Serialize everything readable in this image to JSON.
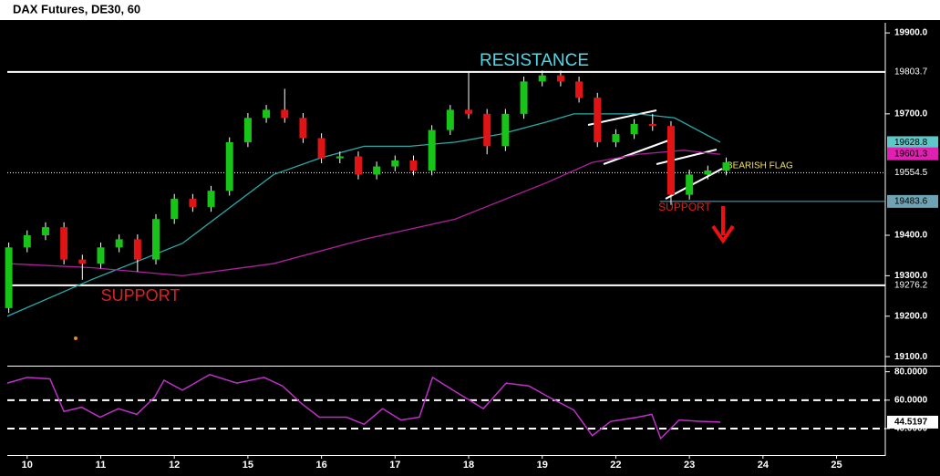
{
  "chart_data": {
    "type": "candlestick",
    "title": "DAX Futures, DE30, 60",
    "xlim": [
      -0.27,
      11.65
    ],
    "xticks": [
      {
        "value": 0,
        "label": "10"
      },
      {
        "value": 1,
        "label": "11"
      },
      {
        "value": 2,
        "label": "12"
      },
      {
        "value": 3,
        "label": "15"
      },
      {
        "value": 4,
        "label": "16"
      },
      {
        "value": 5,
        "label": "17"
      },
      {
        "value": 6,
        "label": "18"
      },
      {
        "value": 7,
        "label": "19"
      },
      {
        "value": 8,
        "label": "22"
      },
      {
        "value": 9,
        "label": "23"
      },
      {
        "value": 10,
        "label": "24"
      },
      {
        "value": 11,
        "label": "25"
      }
    ],
    "ylim": [
      19080,
      19925
    ],
    "yticks": [
      {
        "value": 19900,
        "label": "19900.0"
      },
      {
        "value": 19700,
        "label": "19700.0"
      },
      {
        "value": 19400,
        "label": "19400.0"
      },
      {
        "value": 19300,
        "label": "19300.0"
      },
      {
        "value": 19200,
        "label": "19200.0"
      },
      {
        "value": 19100,
        "label": "19100.0"
      }
    ],
    "up_color": "#19c419",
    "down_color": "#e01414",
    "candles": {
      "x": [
        -0.25,
        0,
        0.25,
        0.5,
        0.75,
        1,
        1.25,
        1.5,
        1.75,
        2,
        2.25,
        2.5,
        2.75,
        3,
        3.25,
        3.5,
        3.75,
        4,
        4.25,
        4.5,
        4.75,
        5,
        5.25,
        5.5,
        5.75,
        6,
        6.25,
        6.5,
        6.75,
        7,
        7.25,
        7.5,
        7.75,
        8,
        8.25,
        8.5,
        8.75,
        9,
        9.25,
        9.5
      ],
      "open": [
        19220,
        19370,
        19400,
        19420,
        19340,
        19330,
        19370,
        19390,
        19340,
        19440,
        19490,
        19470,
        19510,
        19630,
        19690,
        19710,
        19690,
        19640,
        19590,
        19595,
        19550,
        19570,
        19585,
        19560,
        19660,
        19710,
        19700,
        19620,
        19700,
        19780,
        19795,
        19780,
        19740,
        19630,
        19650,
        19675,
        19670,
        19500,
        19550,
        19560
      ],
      "high": [
        19382,
        19412,
        19432,
        19432,
        19352,
        19382,
        19402,
        19402,
        19452,
        19502,
        19502,
        19522,
        19642,
        19702,
        19722,
        19762,
        19702,
        19652,
        19607,
        19607,
        19582,
        19597,
        19597,
        19672,
        19722,
        19803,
        19712,
        19712,
        19792,
        19807,
        19807,
        19792,
        19752,
        19662,
        19687,
        19700,
        19682,
        19562,
        19572,
        19592
      ],
      "low": [
        19208,
        19358,
        19388,
        19328,
        19290,
        19318,
        19358,
        19310,
        19328,
        19428,
        19458,
        19458,
        19498,
        19618,
        19678,
        19678,
        19628,
        19578,
        19578,
        19538,
        19538,
        19558,
        19548,
        19548,
        19648,
        19688,
        19600,
        19608,
        19688,
        19768,
        19768,
        19728,
        19618,
        19618,
        19638,
        19658,
        19475,
        19488,
        19538,
        19548
      ],
      "close": [
        19370,
        19400,
        19420,
        19340,
        19330,
        19370,
        19390,
        19340,
        19440,
        19490,
        19470,
        19510,
        19630,
        19690,
        19710,
        19690,
        19640,
        19590,
        19595,
        19550,
        19570,
        19585,
        19560,
        19660,
        19710,
        19700,
        19620,
        19700,
        19780,
        19795,
        19780,
        19740,
        19630,
        19650,
        19675,
        19670,
        19500,
        19550,
        19560,
        19580
      ]
    },
    "moving_averages": [
      {
        "color": "#2aa9a9",
        "x": [
          -0.27,
          0.87,
          2.11,
          3.35,
          3.97,
          4.58,
          5.2,
          5.82,
          6.44,
          7.06,
          7.43,
          8.3,
          8.8,
          9.42
        ],
        "values": [
          19200,
          19290,
          19380,
          19550,
          19590,
          19620,
          19620,
          19630,
          19650,
          19680,
          19700,
          19700,
          19690,
          19630
        ]
      },
      {
        "color": "#b0209c",
        "x": [
          -0.27,
          0.87,
          2.11,
          3.35,
          4.58,
          5.82,
          7.06,
          7.68,
          8.3,
          8.92,
          9.42
        ],
        "values": [
          19330,
          19320,
          19300,
          19330,
          19390,
          19440,
          19530,
          19580,
          19600,
          19610,
          19600
        ]
      }
    ],
    "levels": [
      {
        "value": 19803.7,
        "style": "solid",
        "color": "#ffffff"
      },
      {
        "value": 19276.2,
        "style": "solid",
        "color": "#ffffff"
      },
      {
        "value": 19554.5,
        "style": "dotted",
        "color": "#ffffff"
      }
    ],
    "support_level": {
      "value": 19483.6,
      "from": 8.6,
      "color": "#6fa3b3"
    },
    "price_labels": [
      {
        "value": 19628.8,
        "color": "#5ec8c8"
      },
      {
        "value": 19601.3,
        "color": "#e020b0"
      }
    ],
    "annotations": {
      "resistance": "RESISTANCE",
      "support_main": "SUPPORT",
      "support_small": "SUPPORT",
      "flag": "BEARISH FLAG"
    },
    "rsi": {
      "color": "#c030c8",
      "ylim": [
        22,
        83
      ],
      "yticks": [
        {
          "value": 80,
          "label": "80.0000"
        },
        {
          "value": 60,
          "label": "60.0000"
        },
        {
          "value": 40,
          "label": "40.0000"
        }
      ],
      "dashed": [
        60,
        40
      ],
      "current": 44.5197,
      "x": [
        -0.27,
        0,
        0.31,
        0.5,
        0.74,
        0.99,
        1.24,
        1.49,
        1.73,
        1.86,
        2.11,
        2.48,
        2.85,
        3.22,
        3.47,
        3.72,
        3.97,
        4.34,
        4.58,
        4.83,
        5.08,
        5.33,
        5.51,
        5.82,
        6.2,
        6.51,
        6.82,
        7.06,
        7.43,
        7.68,
        7.93,
        8.3,
        8.49,
        8.61,
        8.86,
        9.17,
        9.42
      ],
      "values": [
        72,
        76,
        75,
        52,
        55,
        48,
        54,
        50,
        62,
        74,
        67,
        78,
        72,
        76,
        70,
        58,
        48,
        48,
        43,
        54,
        46,
        48,
        76,
        66,
        54,
        72,
        70,
        63,
        53,
        35,
        45,
        48,
        50,
        33,
        46,
        45,
        44.5197
      ]
    }
  }
}
